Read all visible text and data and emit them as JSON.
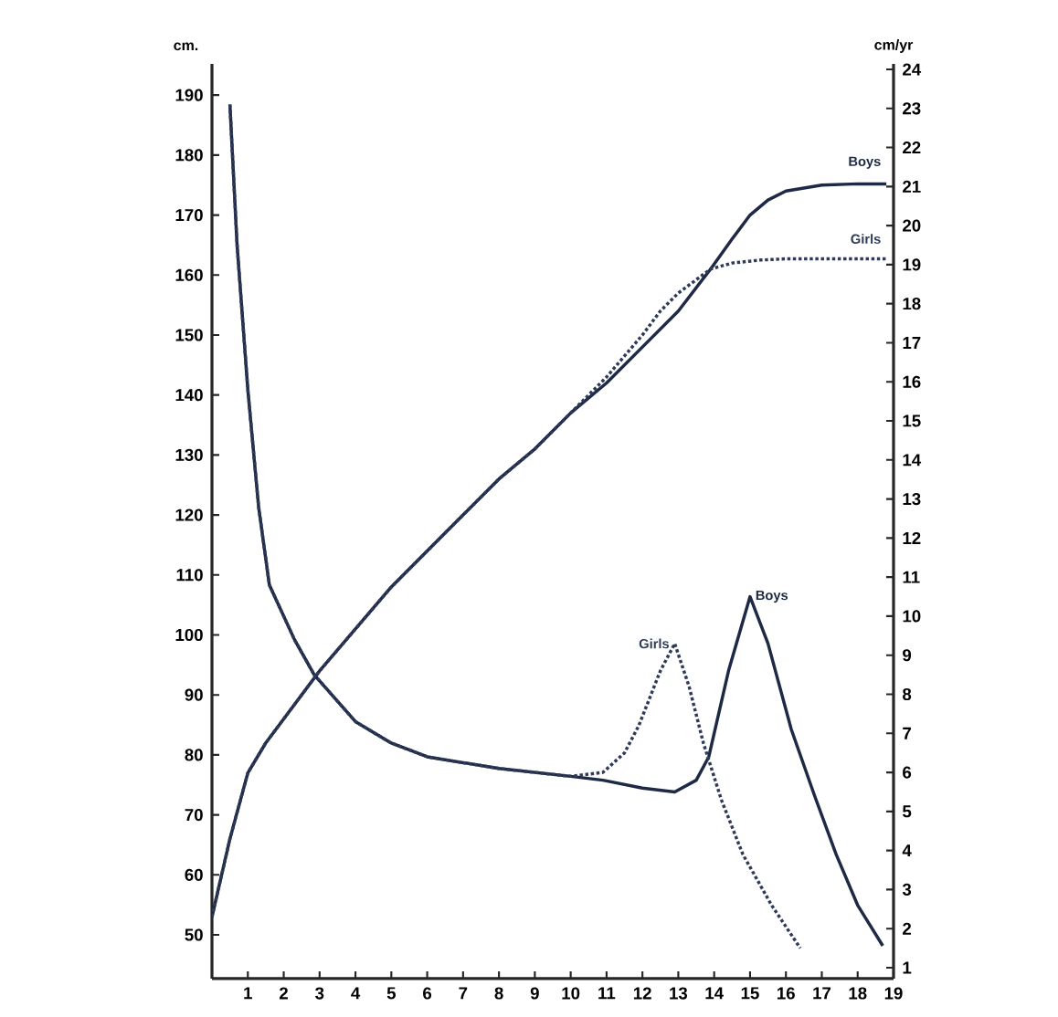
{
  "chart_data": {
    "type": "line",
    "ylabel": "cm.",
    "y2label": "cm/yr",
    "xlim": [
      0,
      19
    ],
    "xticks": [
      1,
      2,
      3,
      4,
      5,
      6,
      7,
      8,
      9,
      10,
      11,
      12,
      13,
      14,
      15,
      16,
      17,
      18,
      19
    ],
    "ylim": [
      42.7,
      195.2
    ],
    "yticks": [
      50,
      60,
      70,
      80,
      90,
      100,
      110,
      120,
      130,
      140,
      150,
      160,
      170,
      180,
      190
    ],
    "y2lim": [
      0.72,
      24.14
    ],
    "y2ticks": [
      1,
      2,
      3,
      4,
      5,
      6,
      7,
      8,
      9,
      10,
      11,
      12,
      13,
      14,
      15,
      16,
      17,
      18,
      19,
      20,
      21,
      22,
      23,
      24
    ],
    "legend": false,
    "grid": false,
    "marker": "none",
    "series": [
      {
        "name": "Boys",
        "color": "#1e2a45",
        "line_style": "solid",
        "x": [
          0,
          0.5,
          1,
          1.5,
          2,
          3,
          4,
          5,
          6,
          7,
          8,
          9,
          10,
          11,
          12,
          13,
          13.9,
          14.5,
          15,
          15.5,
          16,
          17,
          18,
          18.8
        ],
        "values": [
          53,
          66,
          77,
          82,
          86,
          94,
          101,
          108,
          114,
          120,
          126,
          131,
          137,
          142,
          148,
          154,
          161,
          166,
          170,
          172.5,
          174,
          175,
          175.2,
          175.2
        ]
      },
      {
        "name": "Girls",
        "color": "#2e3a58",
        "line_style": "dotted",
        "x": [
          0,
          0.5,
          1,
          1.5,
          2,
          3,
          4,
          5,
          6,
          7,
          8,
          9,
          10,
          11,
          12,
          12.5,
          13,
          13.9,
          14.5,
          15.3,
          16,
          18.8
        ],
        "values": [
          53,
          66,
          77,
          82,
          86,
          94,
          101,
          108,
          114,
          120,
          126,
          131,
          137,
          143,
          150,
          154,
          157,
          161,
          162,
          162.5,
          162.7,
          162.7
        ]
      },
      {
        "name": "Boys",
        "color": "#1e2a45",
        "line_style": "solid",
        "axis": "y2",
        "x": [
          0.5,
          0.7,
          1,
          1.3,
          1.6,
          2.3,
          2.85,
          4,
          5,
          6,
          8,
          10,
          10.9,
          12,
          12.9,
          13.5,
          13.85,
          14.4,
          15,
          15.5,
          16.15,
          16.8,
          17.4,
          18,
          18.7
        ],
        "values": [
          23.1,
          19.5,
          15.8,
          12.8,
          10.8,
          9.4,
          8.5,
          7.3,
          6.75,
          6.4,
          6.1,
          5.9,
          5.8,
          5.6,
          5.5,
          5.8,
          6.4,
          8.6,
          10.5,
          9.3,
          7.1,
          5.4,
          3.9,
          2.6,
          1.56
        ]
      },
      {
        "name": "Girls",
        "color": "#2e3a58",
        "line_style": "dotted",
        "axis": "y2",
        "x": [
          0.5,
          0.7,
          1,
          1.3,
          1.6,
          2.3,
          2.85,
          4,
          5,
          6,
          8,
          10,
          10.9,
          11.5,
          11.9,
          12.5,
          12.9,
          13.3,
          13.7,
          14.2,
          14.8,
          15.6,
          16.4
        ],
        "values": [
          23.1,
          19.5,
          15.8,
          12.8,
          10.8,
          9.4,
          8.5,
          7.3,
          6.75,
          6.4,
          6.1,
          5.9,
          6.0,
          6.5,
          7.2,
          8.6,
          9.3,
          8.2,
          6.75,
          5.3,
          3.9,
          2.6,
          1.5
        ]
      }
    ]
  }
}
